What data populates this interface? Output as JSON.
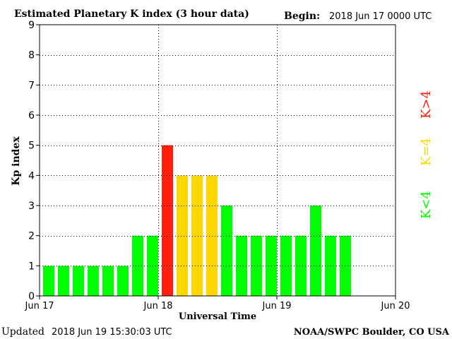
{
  "header": {
    "title": "Estimated Planetary K index (3 hour data)",
    "begin_label": "Begin:",
    "begin_value": "2018 Jun 17 0000 UTC"
  },
  "footer": {
    "updated_label": "Updated",
    "updated_value": "2018 Jun 19 15:30:03 UTC",
    "credit": "NOAA/SWPC Boulder, CO USA"
  },
  "legend": {
    "low": "K<4",
    "mid": "K=4",
    "high": "K>4"
  },
  "colors": {
    "low": "#00ff00",
    "mid": "#ffd700",
    "high": "#ff2010",
    "axis": "#000000",
    "grid": "#000000"
  },
  "chart_data": {
    "type": "bar",
    "title": "Estimated Planetary K index (3 hour data)",
    "xlabel": "Universal Time",
    "ylabel": "Kp index",
    "ylim": [
      0,
      9
    ],
    "yticks": [
      0,
      1,
      2,
      3,
      4,
      5,
      6,
      7,
      8,
      9
    ],
    "xticks": [
      "Jun 17",
      "Jun 18",
      "Jun 19",
      "Jun 20"
    ],
    "slots_per_day": 8,
    "days": 3,
    "values": [
      1,
      1,
      1,
      1,
      1,
      1,
      2,
      2,
      5,
      4,
      4,
      4,
      3,
      2,
      2,
      2,
      2,
      2,
      3,
      2,
      2
    ],
    "grid": true
  }
}
